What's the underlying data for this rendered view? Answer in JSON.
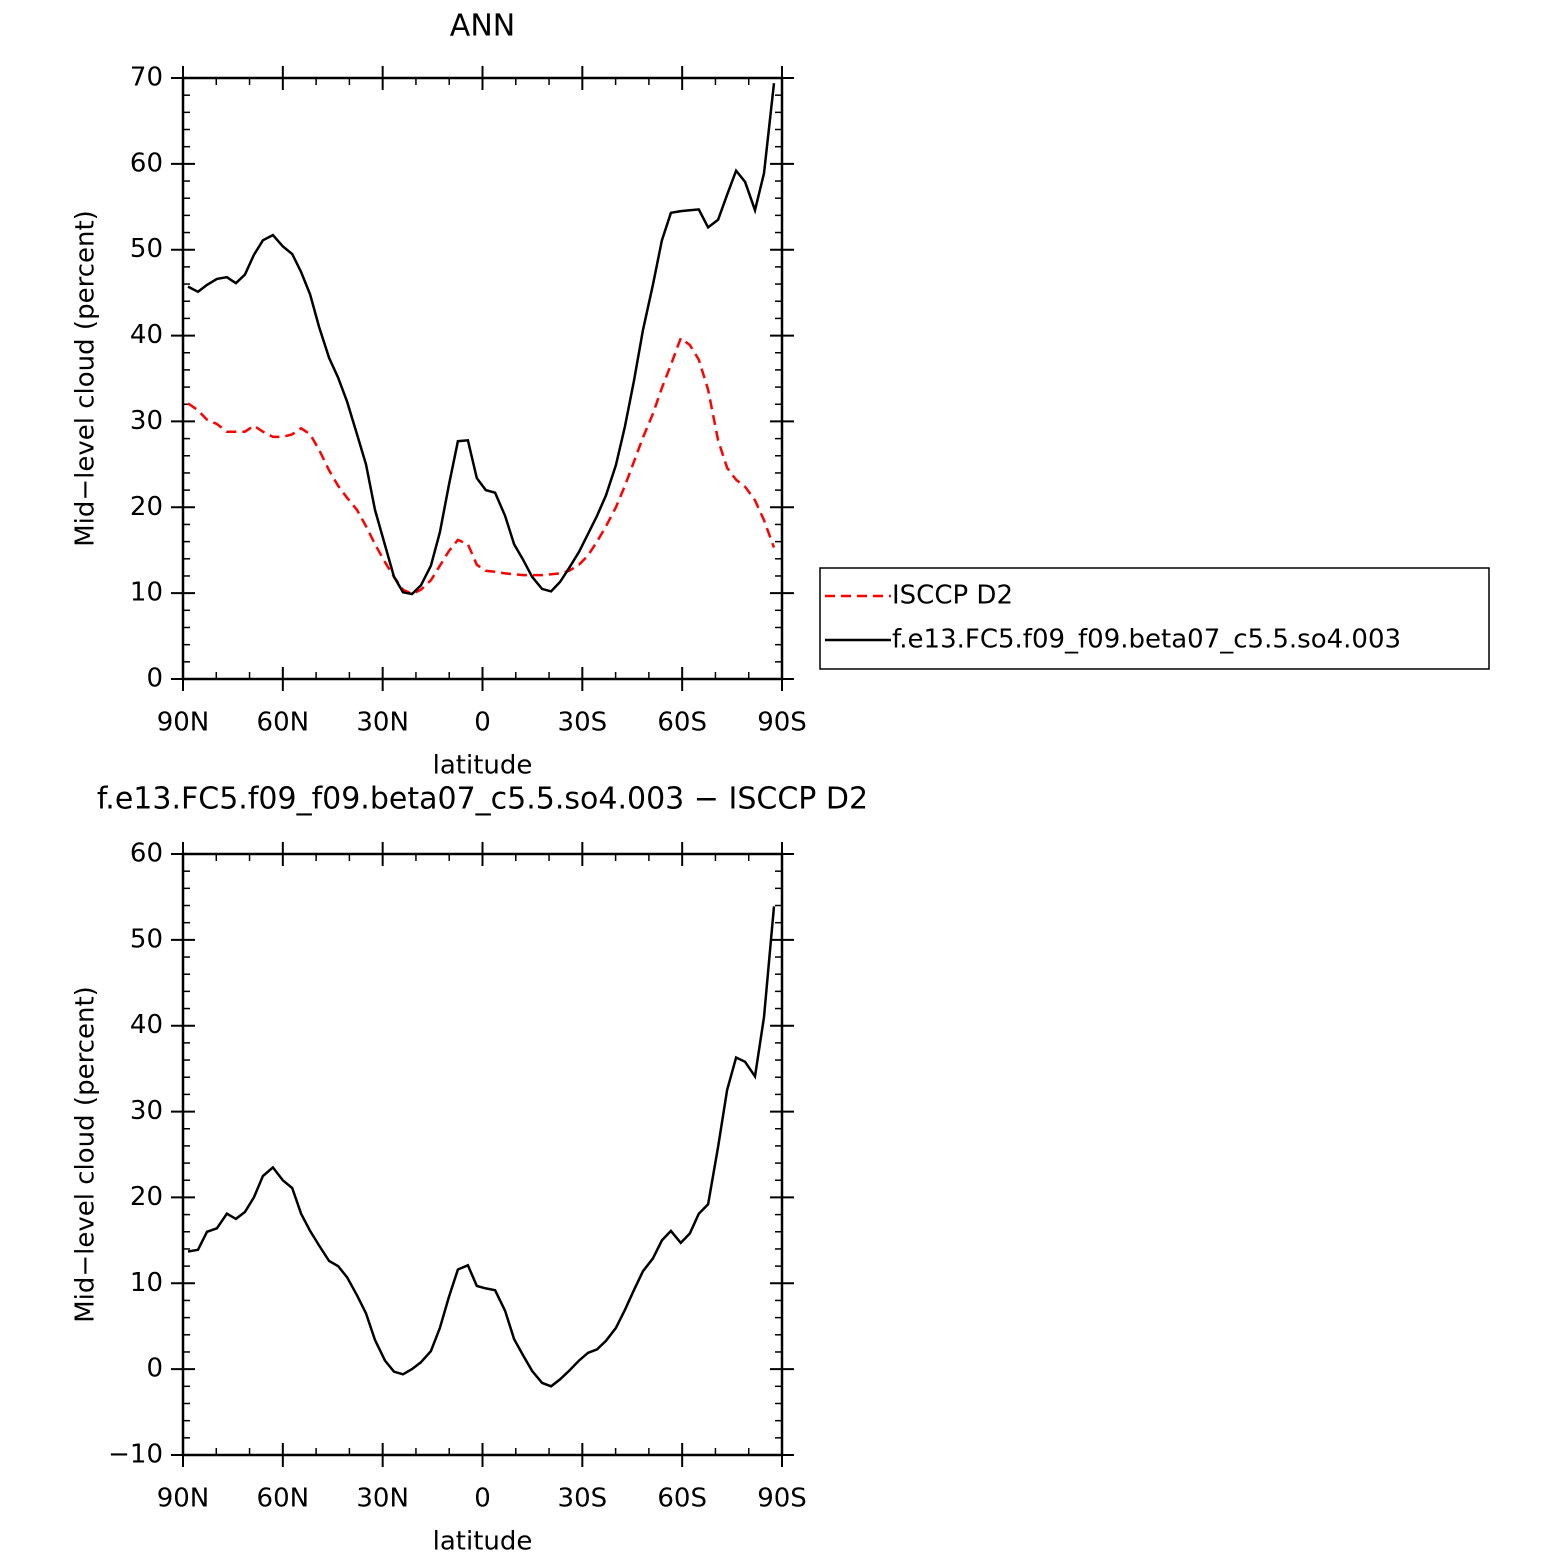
{
  "chart_data": [
    {
      "type": "line",
      "title": "ANN",
      "xlabel": "latitude",
      "ylabel": "Mid−level cloud (percent)",
      "x": [
        88.5,
        85.5,
        82.8,
        79.8,
        76.8,
        74.1,
        71.4,
        68.7,
        66.0,
        63.0,
        60.0,
        57.2,
        54.5,
        51.8,
        49.1,
        46.1,
        43.4,
        40.7,
        37.7,
        35.0,
        32.3,
        29.3,
        26.6,
        23.9,
        21.2,
        18.5,
        15.5,
        12.8,
        10.1,
        7.4,
        4.4,
        1.7,
        -1.0,
        -3.8,
        -6.8,
        -9.5,
        -12.2,
        -14.9,
        -17.9,
        -20.6,
        -23.3,
        -26.0,
        -29.0,
        -31.7,
        -34.4,
        -37.1,
        -40.1,
        -42.8,
        -45.5,
        -48.2,
        -51.2,
        -53.9,
        -56.6,
        -59.6,
        -62.3,
        -65.0,
        -67.8,
        -70.8,
        -73.5,
        -76.2,
        -78.9,
        -81.9,
        -84.6,
        -87.6
      ],
      "xlim": [
        90,
        -90
      ],
      "xticks": [
        {
          "value": 90,
          "label": "90N"
        },
        {
          "value": 60,
          "label": "60N"
        },
        {
          "value": 30,
          "label": "30N"
        },
        0,
        {
          "value": -30,
          "label": "30S"
        },
        {
          "value": -60,
          "label": "60S"
        },
        {
          "value": -90,
          "label": "90S"
        }
      ],
      "ylim": [
        0,
        70
      ],
      "yticks": [
        0,
        10,
        20,
        30,
        40,
        50,
        60,
        70
      ],
      "legend": "right",
      "series": [
        {
          "name": "ISCCP D2",
          "color": "#ff0000",
          "dashed": true,
          "values": [
            32.1,
            31.3,
            30.2,
            29.7,
            28.8,
            28.8,
            28.8,
            29.5,
            28.8,
            28.2,
            28.2,
            28.5,
            29.2,
            28.5,
            26.7,
            24.3,
            22.5,
            21.1,
            19.7,
            17.8,
            15.7,
            13.6,
            11.9,
            10.4,
            9.9,
            10.4,
            11.5,
            13.2,
            14.9,
            16.2,
            15.7,
            13.3,
            12.6,
            12.5,
            12.3,
            12.2,
            12.1,
            12.1,
            12.1,
            12.2,
            12.3,
            12.6,
            13.3,
            14.4,
            16.0,
            17.8,
            20.0,
            22.5,
            25.3,
            28.1,
            30.9,
            33.9,
            36.6,
            39.7,
            38.9,
            37.2,
            33.7,
            27.8,
            24.6,
            23.2,
            22.4,
            20.8,
            18.5,
            15.3
          ]
        },
        {
          "name": "f.e13.FC5.f09_f09.beta07_c5.5.so4.003",
          "color": "#000000",
          "dashed": false,
          "values": [
            45.7,
            45.1,
            45.9,
            46.6,
            46.8,
            46.1,
            47.1,
            49.4,
            51.1,
            51.7,
            50.4,
            49.5,
            47.4,
            44.8,
            41.0,
            37.4,
            35.1,
            32.3,
            28.5,
            25.0,
            19.7,
            15.6,
            11.9,
            10.1,
            9.9,
            10.9,
            13.2,
            17.1,
            22.6,
            27.7,
            27.8,
            23.4,
            22.0,
            21.7,
            19.0,
            15.7,
            13.9,
            11.9,
            10.5,
            10.2,
            11.3,
            12.9,
            14.8,
            16.9,
            19.0,
            21.4,
            24.9,
            29.4,
            34.7,
            40.6,
            45.9,
            51.1,
            54.3,
            54.5,
            54.6,
            54.7,
            52.6,
            53.5,
            56.4,
            59.2,
            57.9,
            54.6,
            58.9,
            69.4
          ]
        }
      ]
    },
    {
      "type": "line",
      "title": "f.e13.FC5.f09_f09.beta07_c5.5.so4.003 − ISCCP D2",
      "xlabel": "latitude",
      "ylabel": "Mid−level cloud (percent)",
      "x": [
        88.5,
        85.5,
        82.8,
        79.8,
        76.8,
        74.1,
        71.4,
        68.7,
        66.0,
        63.0,
        60.0,
        57.2,
        54.5,
        51.8,
        49.1,
        46.1,
        43.4,
        40.7,
        37.7,
        35.0,
        32.3,
        29.3,
        26.6,
        23.9,
        21.2,
        18.5,
        15.5,
        12.8,
        10.1,
        7.4,
        4.4,
        1.7,
        -1.0,
        -3.8,
        -6.8,
        -9.5,
        -12.2,
        -14.9,
        -17.9,
        -20.6,
        -23.3,
        -26.0,
        -29.0,
        -31.7,
        -34.4,
        -37.1,
        -40.1,
        -42.8,
        -45.5,
        -48.2,
        -51.2,
        -53.9,
        -56.6,
        -59.6,
        -62.3,
        -65.0,
        -67.8,
        -70.8,
        -73.5,
        -76.2,
        -78.9,
        -81.9,
        -84.6,
        -87.6
      ],
      "xlim": [
        90,
        -90
      ],
      "xticks": [
        {
          "value": 90,
          "label": "90N"
        },
        {
          "value": 60,
          "label": "60N"
        },
        {
          "value": 30,
          "label": "30N"
        },
        0,
        {
          "value": -30,
          "label": "30S"
        },
        {
          "value": -60,
          "label": "60S"
        },
        {
          "value": -90,
          "label": "90S"
        }
      ],
      "ylim": [
        -10,
        60
      ],
      "yticks": [
        {
          "value": -10,
          "label": "−10"
        },
        0,
        10,
        20,
        30,
        40,
        50,
        60
      ],
      "series": [
        {
          "color": "#000000",
          "dashed": false,
          "values": [
            13.7,
            13.9,
            16.0,
            16.4,
            18.1,
            17.5,
            18.3,
            20.0,
            22.5,
            23.5,
            22.0,
            21.1,
            18.1,
            16.1,
            14.4,
            12.6,
            12.0,
            10.7,
            8.6,
            6.5,
            3.4,
            1.0,
            -0.3,
            -0.6,
            0,
            0.8,
            2.1,
            4.8,
            8.4,
            11.6,
            12.1,
            9.7,
            9.4,
            9.2,
            6.8,
            3.5,
            1.6,
            -0.2,
            -1.6,
            -2.0,
            -1.2,
            -0.2,
            1.0,
            1.9,
            2.3,
            3.3,
            4.8,
            6.9,
            9.2,
            11.4,
            12.9,
            15.0,
            16.1,
            14.7,
            15.8,
            18.1,
            19.2,
            25.9,
            32.5,
            36.3,
            35.8,
            34.1,
            41.0,
            53.9
          ]
        }
      ]
    }
  ]
}
